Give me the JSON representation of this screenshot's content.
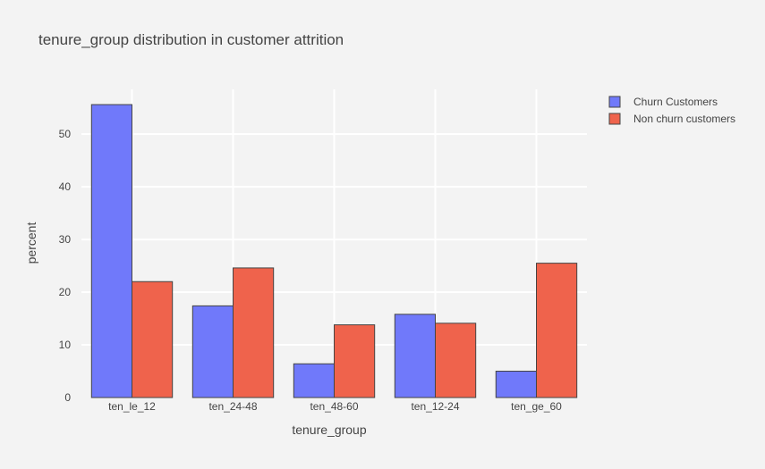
{
  "chart_data": {
    "type": "bar",
    "title": "tenure_group distribution in customer attrition",
    "xlabel": "tenure_group",
    "ylabel": "percent",
    "categories": [
      "ten_le_12",
      "ten_24-48",
      "ten_48-60",
      "ten_12-24",
      "ten_ge_60"
    ],
    "series": [
      {
        "name": "Churn Customers",
        "color": "#7079fa",
        "values": [
          55.6,
          17.4,
          6.4,
          15.8,
          5.0
        ]
      },
      {
        "name": "Non churn customers",
        "color": "#ef634c",
        "values": [
          22.0,
          24.6,
          13.8,
          14.1,
          25.5
        ]
      }
    ],
    "ylim": [
      0,
      58.5
    ],
    "yticks": [
      0,
      10,
      20,
      30,
      40,
      50
    ],
    "grid": true,
    "legend_position": "top-right",
    "background": "#f3f3f3",
    "gridline_color": "#ffffff"
  }
}
